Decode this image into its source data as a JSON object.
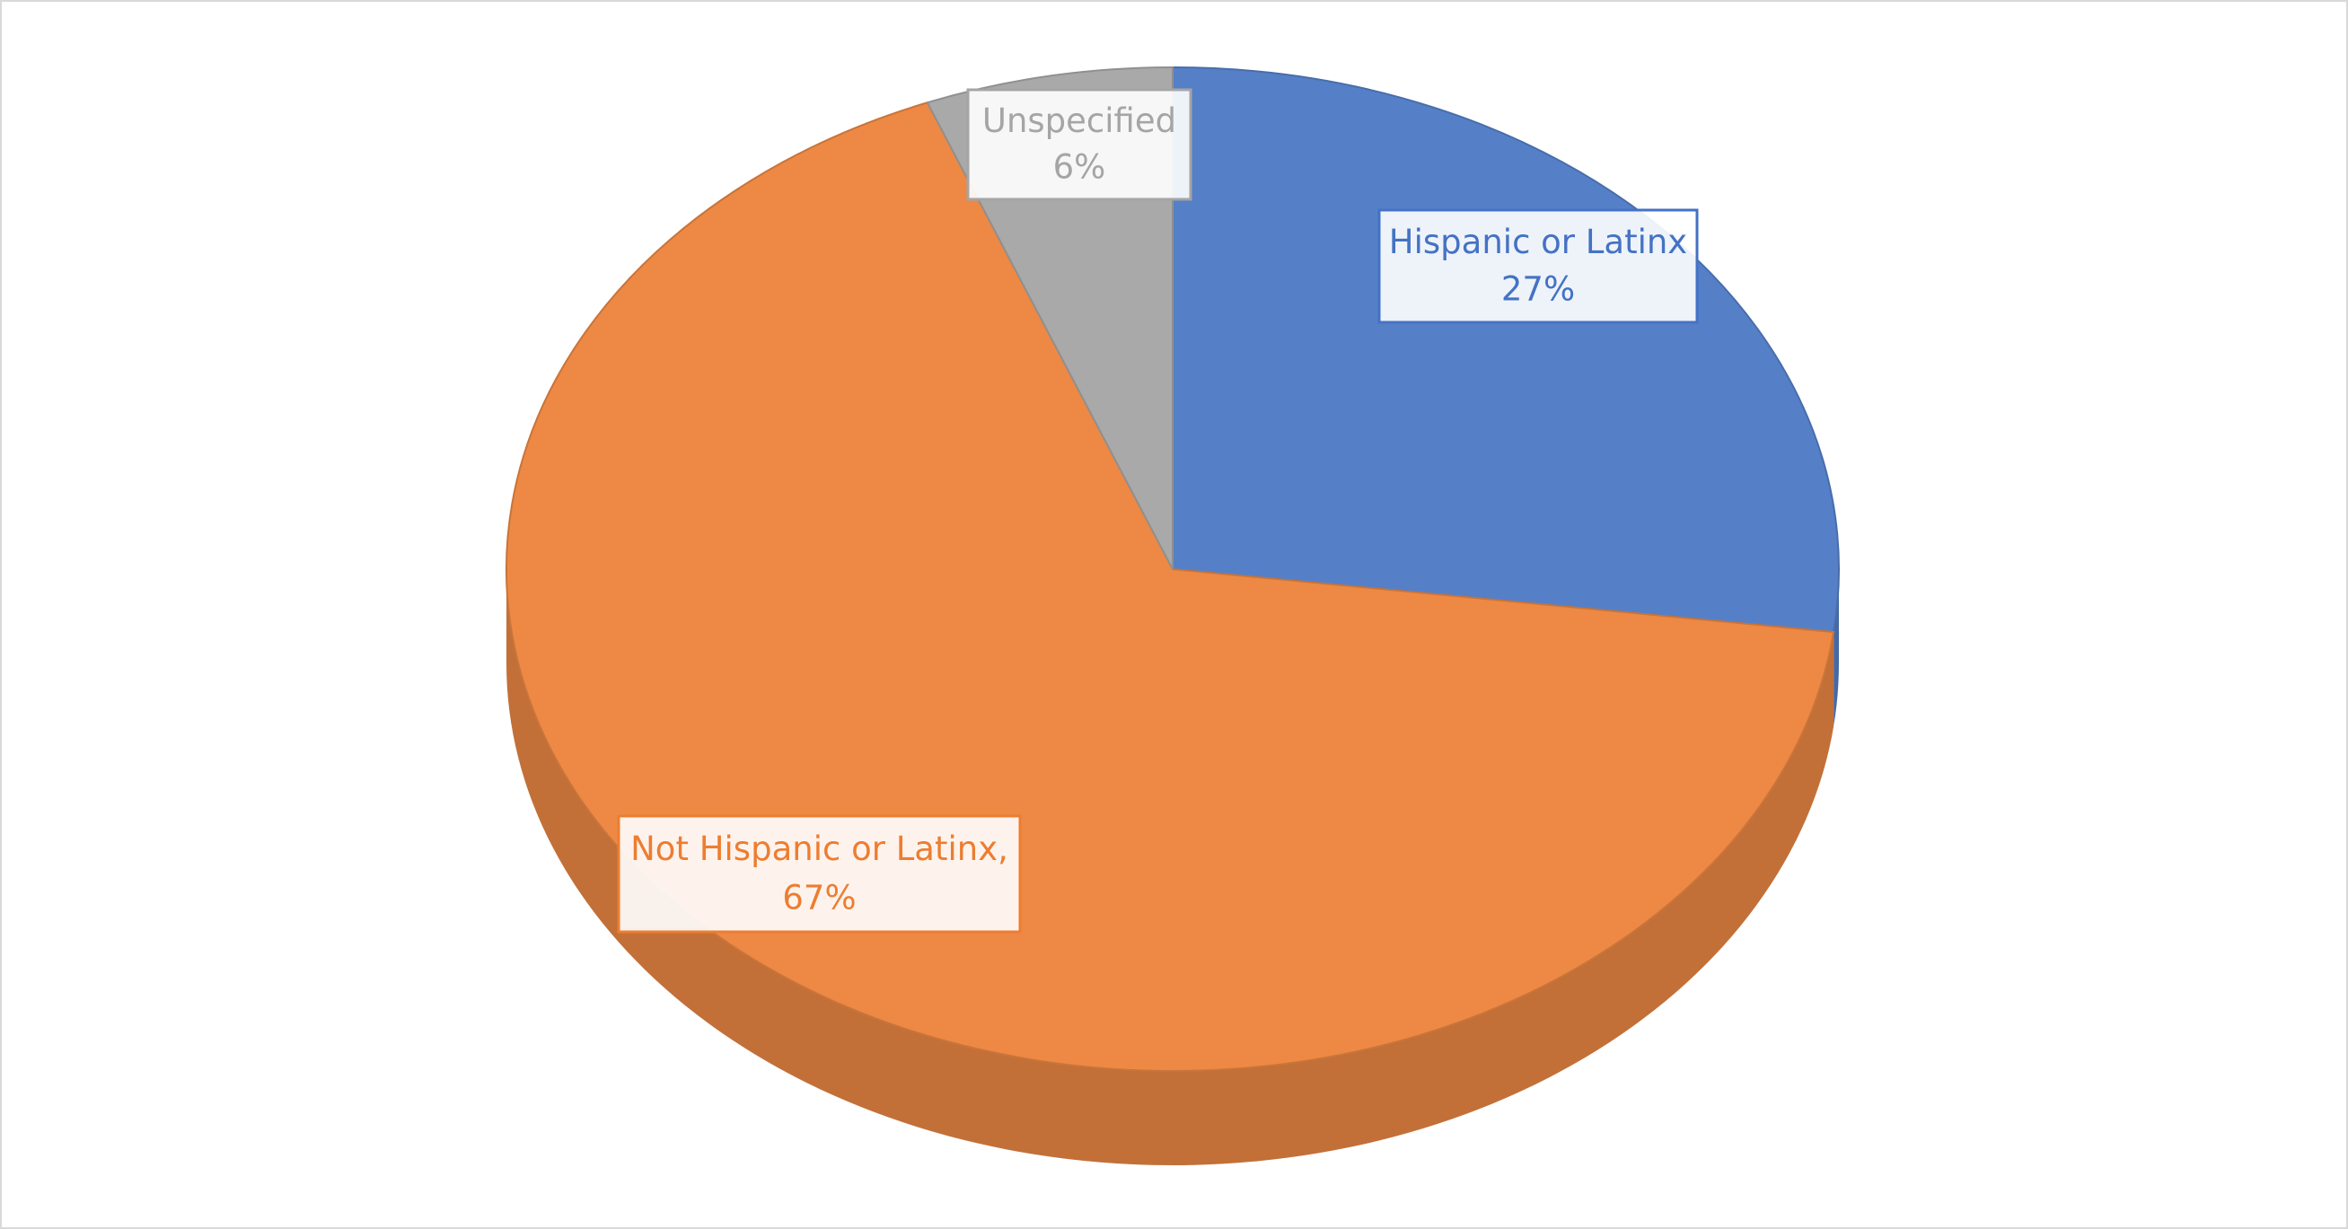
{
  "chart_data": {
    "type": "pie",
    "categories": [
      "Hispanic or Latinx",
      "Not Hispanic or Latinx,",
      "Unspecified"
    ],
    "values": [
      27,
      67,
      6
    ],
    "value_labels": [
      "27%",
      "67%",
      "6%"
    ],
    "colors": [
      "#5580c8",
      "#ed8944",
      "#a9a9a9"
    ],
    "label_colors": [
      "#4472c4",
      "#ed7d31",
      "#a5a5a5"
    ]
  }
}
